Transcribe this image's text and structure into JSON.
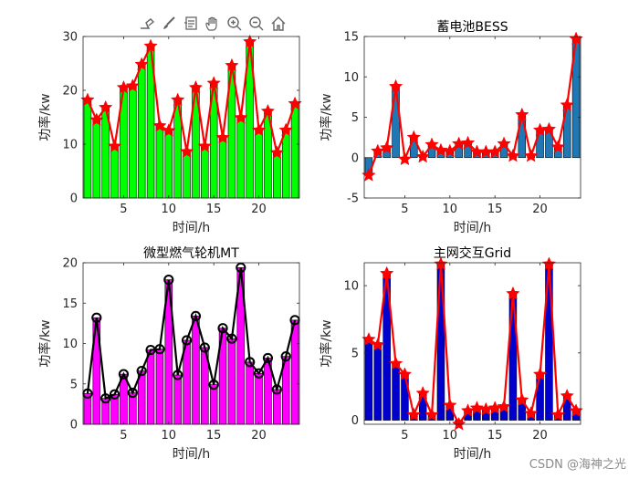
{
  "toolbar": {
    "icons": [
      "annotate-export-icon",
      "brush-icon",
      "datatip-icon",
      "pan-hand-icon",
      "zoom-in-icon",
      "zoom-out-icon",
      "home-restore-icon"
    ]
  },
  "watermark": "CSDN @海神之光",
  "chart_data": [
    {
      "id": "pv",
      "type": "bar+line",
      "title": "",
      "xlabel": "时间/h",
      "ylabel": "功率/kw",
      "xlim": [
        0.5,
        24.5
      ],
      "ylim": [
        0,
        30
      ],
      "xticks": [
        5,
        10,
        15,
        20
      ],
      "yticks": [
        0,
        10,
        20,
        30
      ],
      "bar_color": "#00ff00",
      "line_color": "#ff0000",
      "marker": "star",
      "x": [
        1,
        2,
        3,
        4,
        5,
        6,
        7,
        8,
        9,
        10,
        11,
        12,
        13,
        14,
        15,
        16,
        17,
        18,
        19,
        20,
        21,
        22,
        23,
        24
      ],
      "values": [
        18.2,
        14.5,
        16.8,
        9.6,
        20.5,
        20.8,
        24.8,
        28.2,
        13.4,
        12.5,
        18.2,
        8.6,
        20.5,
        9.6,
        21.3,
        11.2,
        24.6,
        14.9,
        29.0,
        12.6,
        16.1,
        8.4,
        12.6,
        17.5
      ]
    },
    {
      "id": "bess",
      "type": "bar+line",
      "title": "蓄电池BESS",
      "xlabel": "时间/h",
      "ylabel": "功率/kw",
      "xlim": [
        0.5,
        24.5
      ],
      "ylim": [
        -5,
        15
      ],
      "xticks": [
        5,
        10,
        15,
        20
      ],
      "yticks": [
        -5,
        0,
        5,
        10,
        15
      ],
      "bar_color": "#1f77b4",
      "line_color": "#ff0000",
      "marker": "star",
      "x": [
        1,
        2,
        3,
        4,
        5,
        6,
        7,
        8,
        9,
        10,
        11,
        12,
        13,
        14,
        15,
        16,
        17,
        18,
        19,
        20,
        21,
        22,
        23,
        24
      ],
      "values": [
        -2.2,
        0.8,
        1.2,
        8.8,
        -0.2,
        2.5,
        0.1,
        1.6,
        0.9,
        0.8,
        1.7,
        1.8,
        0.7,
        0.7,
        0.7,
        1.7,
        0.2,
        5.3,
        0.2,
        3.4,
        3.5,
        1.3,
        6.5,
        14.7
      ]
    },
    {
      "id": "mt",
      "type": "bar+line",
      "title": "微型燃气轮机MT",
      "xlabel": "时间/h",
      "ylabel": "功率/kw",
      "xlim": [
        0.5,
        24.5
      ],
      "ylim": [
        0,
        20
      ],
      "xticks": [
        5,
        10,
        15,
        20
      ],
      "yticks": [
        0,
        5,
        10,
        15,
        20
      ],
      "bar_color": "#ff00ff",
      "line_color": "#000000",
      "marker": "circle",
      "x": [
        1,
        2,
        3,
        4,
        5,
        6,
        7,
        8,
        9,
        10,
        11,
        12,
        13,
        14,
        15,
        16,
        17,
        18,
        19,
        20,
        21,
        22,
        23,
        24
      ],
      "values": [
        3.8,
        13.2,
        3.2,
        3.7,
        6.2,
        3.9,
        6.6,
        9.2,
        9.3,
        17.9,
        6.1,
        10.4,
        13.4,
        9.5,
        4.9,
        11.9,
        10.6,
        19.4,
        7.7,
        6.3,
        8.2,
        4.3,
        8.4,
        12.9
      ]
    },
    {
      "id": "grid",
      "type": "bar+line",
      "title": "主网交互Grid",
      "xlabel": "时间/h",
      "ylabel": "功率/kw",
      "xlim": [
        0.5,
        24.5
      ],
      "ylim": [
        -0.3,
        11.7
      ],
      "xticks": [
        5,
        10,
        15,
        20
      ],
      "yticks": [
        0,
        5,
        10
      ],
      "bar_color": "#0000cc",
      "line_color": "#ff0000",
      "marker": "star",
      "x": [
        1,
        2,
        3,
        4,
        5,
        6,
        7,
        8,
        9,
        10,
        11,
        12,
        13,
        14,
        15,
        16,
        17,
        18,
        19,
        20,
        21,
        22,
        23,
        24
      ],
      "values": [
        6.0,
        5.6,
        10.9,
        4.2,
        3.4,
        0.4,
        2.0,
        0.4,
        11.6,
        1.1,
        -0.3,
        0.7,
        0.9,
        0.8,
        0.9,
        1.0,
        9.4,
        1.5,
        0.5,
        3.4,
        11.6,
        0.4,
        1.8,
        0.7
      ]
    }
  ]
}
